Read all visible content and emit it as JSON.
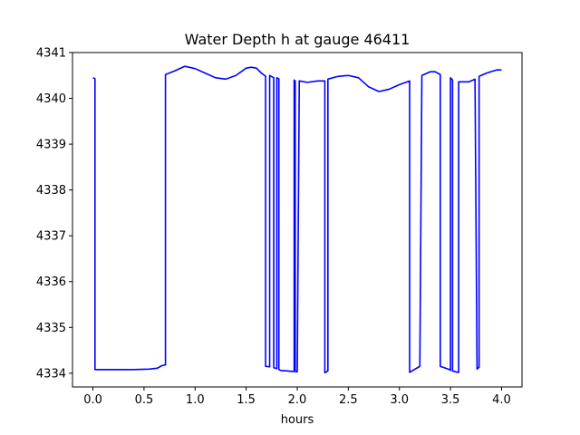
{
  "chart_data": {
    "type": "line",
    "title": "Water Depth h at gauge 46411",
    "xlabel": "hours",
    "ylabel": "",
    "xlim": [
      -0.2,
      4.2
    ],
    "ylim": [
      4333.7,
      4341.0
    ],
    "xticks": [
      "0.0",
      "0.5",
      "1.0",
      "1.5",
      "2.0",
      "2.5",
      "3.0",
      "3.5",
      "4.0"
    ],
    "yticks": [
      "4334",
      "4335",
      "4336",
      "4337",
      "4338",
      "4339",
      "4340",
      "4341"
    ],
    "grid": false,
    "series": [
      {
        "color": "#0000ff",
        "x": [
          0.0,
          0.02,
          0.02,
          0.2,
          0.4,
          0.55,
          0.63,
          0.67,
          0.7,
          0.71,
          0.71,
          0.8,
          0.9,
          1.0,
          1.1,
          1.2,
          1.3,
          1.4,
          1.5,
          1.55,
          1.6,
          1.65,
          1.68,
          1.69,
          1.69,
          1.73,
          1.73,
          1.77,
          1.77,
          1.8,
          1.8,
          1.82,
          1.82,
          1.84,
          1.84,
          1.9,
          1.95,
          1.97,
          1.97,
          1.98,
          1.98,
          2.0,
          2.0,
          2.02,
          2.1,
          2.2,
          2.27,
          2.27,
          2.3,
          2.3,
          2.4,
          2.5,
          2.6,
          2.7,
          2.8,
          2.9,
          3.0,
          3.1,
          3.1,
          3.2,
          3.22,
          3.3,
          3.35,
          3.4,
          3.4,
          3.49,
          3.5,
          3.5,
          3.52,
          3.52,
          3.57,
          3.58,
          3.58,
          3.68,
          3.74,
          3.74,
          3.76,
          3.76,
          3.78,
          3.78,
          3.85,
          3.95,
          4.0
        ],
        "y": [
          4340.45,
          4340.43,
          4334.08,
          4334.08,
          4334.08,
          4334.09,
          4334.11,
          4334.16,
          4334.18,
          4334.18,
          4340.52,
          4340.6,
          4340.7,
          4340.65,
          4340.55,
          4340.45,
          4340.42,
          4340.5,
          4340.66,
          4340.68,
          4340.66,
          4340.55,
          4340.5,
          4340.48,
          4334.15,
          4334.14,
          4340.5,
          4340.45,
          4334.12,
          4334.1,
          4340.45,
          4340.43,
          4334.08,
          4334.06,
          4334.06,
          4334.05,
          4334.04,
          4334.04,
          4340.4,
          4340.38,
          4334.04,
          4334.03,
          4334.03,
          4340.38,
          4340.35,
          4340.38,
          4340.38,
          4334.01,
          4334.05,
          4340.42,
          4340.48,
          4340.5,
          4340.45,
          4340.25,
          4340.15,
          4340.2,
          4340.3,
          4340.38,
          4334.02,
          4334.15,
          4340.5,
          4340.58,
          4340.58,
          4340.52,
          4334.15,
          4334.08,
          4334.06,
          4340.45,
          4340.4,
          4334.05,
          4334.02,
          4334.02,
          4340.36,
          4340.36,
          4340.42,
          4340.42,
          4334.09,
          4334.09,
          4334.13,
          4340.48,
          4340.55,
          4340.62,
          4340.62
        ]
      }
    ]
  }
}
